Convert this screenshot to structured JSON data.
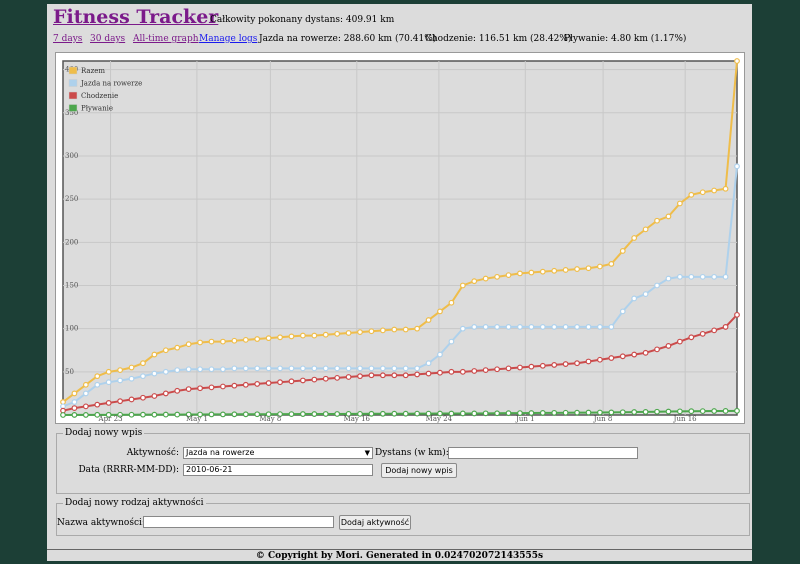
{
  "app": {
    "title": "Fitness Tracker",
    "total_distance": "Całkowity pokonany dystans: 409.91 km"
  },
  "nav": {
    "days7": "7 days",
    "days30": "30 days",
    "alltime": "All-time graph",
    "manage": "Manage logs"
  },
  "stats": {
    "bike": "Jazda na rowerze: 288.60 km (70.41%)",
    "walk": "Chodzenie: 116.51 km (28.42%)",
    "swim": "Pływanie: 4.80 km (1.17%)"
  },
  "chart_data": {
    "type": "line",
    "x_tick_labels": [
      "Apr 23",
      "May 1",
      "May 8",
      "May 16",
      "May 24",
      "Jun 1",
      "Jun 8",
      "Jun 16"
    ],
    "y_tick_labels": [
      "50",
      "100",
      "150",
      "200",
      "250",
      "300",
      "350",
      "400"
    ],
    "ylim": [
      0,
      410
    ],
    "x_count": 60,
    "grid": true,
    "legend_position": "top-left",
    "series": [
      {
        "name": "Razem",
        "color": "#efbd4a",
        "values": [
          15,
          25,
          35,
          45,
          50,
          52,
          55,
          60,
          70,
          75,
          78,
          82,
          84,
          85,
          85,
          86,
          87,
          88,
          89,
          90,
          91,
          92,
          92,
          93,
          94,
          95,
          96,
          97,
          98,
          99,
          99,
          100,
          110,
          120,
          130,
          150,
          155,
          158,
          160,
          162,
          164,
          165,
          166,
          167,
          168,
          169,
          170,
          172,
          175,
          190,
          205,
          215,
          225,
          230,
          245,
          255,
          258,
          260,
          262,
          410
        ]
      },
      {
        "name": "Jazda na rowerze",
        "color": "#aed1ec",
        "values": [
          10,
          15,
          25,
          35,
          38,
          40,
          42,
          45,
          48,
          50,
          52,
          53,
          53,
          53,
          53,
          54,
          54,
          54,
          54,
          54,
          54,
          54,
          54,
          54,
          54,
          54,
          54,
          54,
          54,
          54,
          54,
          54,
          60,
          70,
          85,
          100,
          102,
          102,
          102,
          102,
          102,
          102,
          102,
          102,
          102,
          102,
          102,
          102,
          102,
          120,
          135,
          140,
          150,
          158,
          160,
          160,
          160,
          160,
          160,
          288
        ]
      },
      {
        "name": "Chodzenie",
        "color": "#cb4b4b",
        "values": [
          5,
          8,
          10,
          12,
          14,
          16,
          18,
          20,
          22,
          25,
          28,
          30,
          31,
          32,
          33,
          34,
          35,
          36,
          37,
          38,
          39,
          40,
          41,
          42,
          43,
          44,
          45,
          46,
          46,
          46,
          46,
          47,
          48,
          49,
          50,
          50,
          51,
          52,
          53,
          54,
          55,
          56,
          57,
          58,
          59,
          60,
          62,
          64,
          66,
          68,
          70,
          72,
          76,
          80,
          85,
          90,
          94,
          98,
          102,
          116
        ]
      },
      {
        "name": "Pływanie",
        "color": "#4da74d",
        "values": [
          0,
          0.1,
          0.1,
          0.2,
          0.2,
          0.3,
          0.3,
          0.4,
          0.4,
          0.5,
          0.5,
          0.6,
          0.6,
          0.7,
          0.7,
          0.8,
          0.8,
          0.9,
          0.9,
          1,
          1,
          1.1,
          1.1,
          1.2,
          1.2,
          1.3,
          1.3,
          1.4,
          1.4,
          1.5,
          1.5,
          1.6,
          1.6,
          1.7,
          1.7,
          1.8,
          1.8,
          1.9,
          2,
          2.1,
          2.2,
          2.3,
          2.4,
          2.5,
          2.6,
          2.7,
          2.8,
          2.9,
          3,
          3.2,
          3.4,
          3.6,
          3.8,
          4,
          4.2,
          4.4,
          4.5,
          4.6,
          4.7,
          4.8
        ]
      }
    ]
  },
  "form_entry": {
    "legend": "Dodaj nowy wpis",
    "activity_label": "Aktywność:",
    "activity_value": "Jazda na rowerze",
    "distance_label": "Dystans (w km):",
    "distance_value": "",
    "date_label": "Data (RRRR-MM-DD):",
    "date_value": "2010-06-21",
    "submit": "Dodaj nowy wpis"
  },
  "form_type": {
    "legend": "Dodaj nowy rodzaj aktywności",
    "name_label": "Nazwa aktywności:",
    "name_value": "",
    "submit": "Dodaj aktywność"
  },
  "footer": "© Copyright by Mori. Generated in 0.024702072143555s"
}
